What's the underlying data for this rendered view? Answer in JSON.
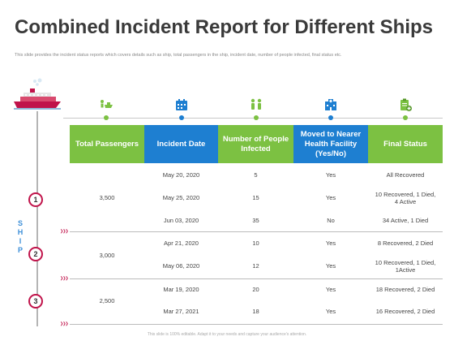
{
  "title": "Combined Incident Report for Different Ships",
  "subtitle": "This slide provides the incident status reports which covers details such as ship, total passengers in the ship, incident date, number of people infected, final status etc.",
  "ship_label": "SHIP",
  "icons": [
    "ship-passengers-icon",
    "calendar-icon",
    "people-icon",
    "hospital-icon",
    "clipboard-plus-icon"
  ],
  "colors": {
    "green": "#7cc142",
    "blue": "#1e7fd1",
    "accent": "#c0134a"
  },
  "table": {
    "headers": [
      "Total Passengers",
      "Incident Date",
      "Number of People Infected",
      "Moved to Nearer Health Facility (Yes/No)",
      "Final Status"
    ],
    "groups": [
      {
        "number": "1",
        "passengers": "3,500",
        "rows": [
          {
            "date": "May 20, 2020",
            "infected": "5",
            "moved": "Yes",
            "status": "All Recovered"
          },
          {
            "date": "May 25, 2020",
            "infected": "15",
            "moved": "Yes",
            "status": "10 Recovered,  1 Died,\n4 Active"
          },
          {
            "date": "Jun 03, 2020",
            "infected": "35",
            "moved": "No",
            "status": "34 Active,  1 Died"
          }
        ]
      },
      {
        "number": "2",
        "passengers": "3,000",
        "rows": [
          {
            "date": "Apr 21, 2020",
            "infected": "10",
            "moved": "Yes",
            "status": "8 Recovered,  2 Died"
          },
          {
            "date": "May 06, 2020",
            "infected": "12",
            "moved": "Yes",
            "status": "10 Recovered,  1 Died,\n1Active"
          }
        ]
      },
      {
        "number": "3",
        "passengers": "2,500",
        "rows": [
          {
            "date": "Mar 19, 2020",
            "infected": "20",
            "moved": "Yes",
            "status": "18 Recovered,  2 Died"
          },
          {
            "date": "Mar 27, 2021",
            "infected": "18",
            "moved": "Yes",
            "status": "16 Recovered,  2 Died"
          }
        ]
      }
    ]
  },
  "footer": "This slide is 100% editable. Adapt it to your needs and capture your audience's attention."
}
